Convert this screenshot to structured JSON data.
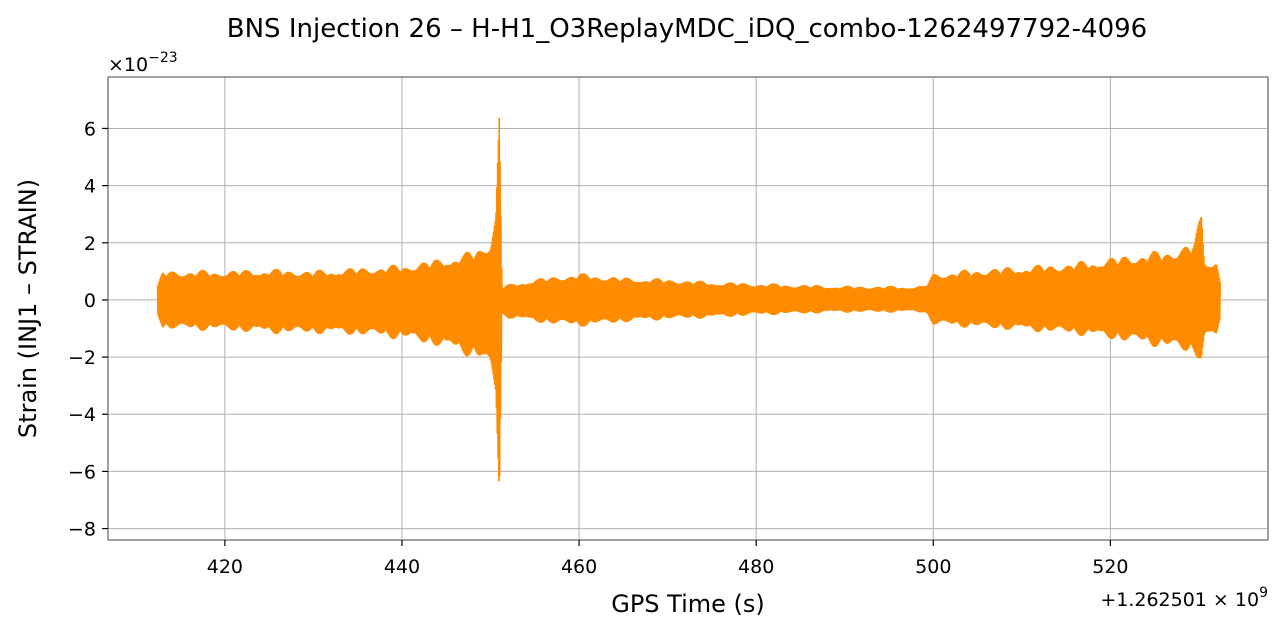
{
  "chart_data": {
    "type": "line",
    "title": "BNS Injection 26 – H-H1_O3ReplayMDC_iDQ_combo-1262497792-4096",
    "xlabel": "GPS Time (s)",
    "ylabel": "Strain (INJ1 – STRAIN)",
    "x_offset_text": "+1.262501 × 10",
    "x_offset_exp": "9",
    "y_scale_text": "×10",
    "y_scale_exp": "−23",
    "xlim": [
      406.8,
      537.8
    ],
    "ylim": [
      -8.4,
      7.8
    ],
    "xticks": [
      420,
      440,
      460,
      480,
      500,
      520
    ],
    "yticks": [
      -8,
      -6,
      -4,
      -2,
      0,
      2,
      4,
      6
    ],
    "ytick_labels": [
      "−8",
      "−6",
      "−4",
      "−2",
      "0",
      "2",
      "4",
      "6"
    ],
    "grid": true,
    "color": "#ff8c00",
    "series": [
      {
        "x_range": [
          412.4,
          532.4
        ],
        "envelope": {
          "x": [
            412.4,
            413.0,
            420,
            425,
            430,
            435,
            440,
            444,
            447,
            449,
            450,
            450.6,
            451.0,
            451.3,
            452,
            455,
            460,
            465,
            470,
            475,
            480,
            485,
            490,
            495,
            499,
            500,
            505,
            510,
            515,
            520,
            523,
            526,
            528,
            529.5,
            530.3,
            530.6,
            531,
            532,
            532.4
          ],
          "upper": [
            0.5,
            1.05,
            1.05,
            1.1,
            1.05,
            1.15,
            1.25,
            1.45,
            1.65,
            1.9,
            2.2,
            3.2,
            7.2,
            0.5,
            0.55,
            0.75,
            0.95,
            0.8,
            0.75,
            0.65,
            0.6,
            0.55,
            0.5,
            0.5,
            0.5,
            0.95,
            1.1,
            1.2,
            1.3,
            1.5,
            1.65,
            1.75,
            1.9,
            2.1,
            3.2,
            1.6,
            1.4,
            1.5,
            0.8
          ],
          "lower": [
            -0.5,
            -1.05,
            -1.1,
            -1.2,
            -1.2,
            -1.25,
            -1.4,
            -1.65,
            -1.95,
            -2.15,
            -2.6,
            -3.5,
            -7.6,
            -0.6,
            -0.65,
            -0.8,
            -0.95,
            -0.8,
            -0.7,
            -0.65,
            -0.55,
            -0.5,
            -0.45,
            -0.45,
            -0.45,
            -0.9,
            -1.0,
            -1.1,
            -1.2,
            -1.4,
            -1.55,
            -1.7,
            -1.85,
            -1.95,
            -2.2,
            -1.5,
            -1.35,
            -1.4,
            -0.8
          ]
        }
      }
    ]
  }
}
